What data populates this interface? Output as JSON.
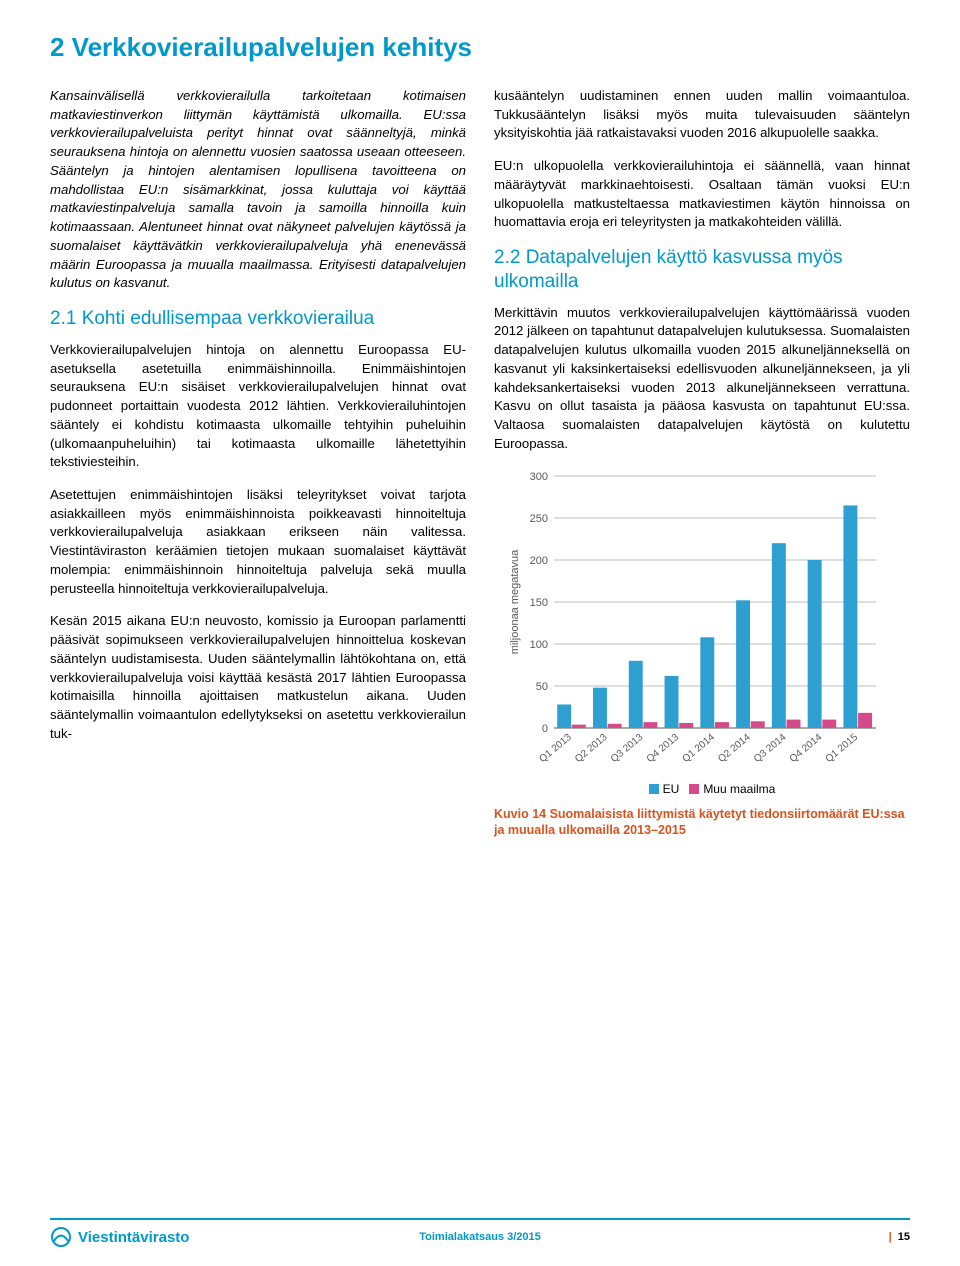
{
  "colors": {
    "title": "#0099cc",
    "body": "#000000",
    "footer_border": "#0099cc",
    "footer_text": "#0099cc",
    "caption": "#d9531e",
    "eu_bar": "#2e9fd1",
    "world_bar": "#d64a8c",
    "grid": "#bfbfbf",
    "axis_text": "#595959"
  },
  "title": "2 Verkkovierailupalvelujen kehitys",
  "intro": "Kansainvälisellä verkkovierailulla tarkoitetaan kotimaisen matkaviestinverkon liittymän käyttämistä ulkomailla. EU:ssa verkkovierailupalveluista perityt hinnat ovat säänneltyjä, minkä seurauksena hintoja on alennettu vuosien saatossa useaan otteeseen. Sääntelyn ja hintojen alentamisen lopullisena tavoitteena on mahdollistaa EU:n sisämarkkinat, jossa kuluttaja voi käyttää matkaviestinpalveluja samalla tavoin ja samoilla hinnoilla kuin kotimaassaan. Alentuneet hinnat ovat näkyneet palvelujen käytössä ja suomalaiset käyttävätkin verkkovierailupalveluja yhä enenevässä määrin Euroopassa ja muualla maailmassa. Erityisesti datapalvelujen kulutus on kasvanut.",
  "sec21_title": "2.1 Kohti edullisempaa verkkovierailua",
  "p21a": "Verkkovierailupalvelujen hintoja on alennettu Euroopassa EU-asetuksella asetetuilla enimmäishinnoilla. Enimmäishintojen seurauksena EU:n sisäiset verkkovierailupalvelujen hinnat ovat pudonneet portaittain vuodesta 2012 lähtien. Verkkovierailuhintojen sääntely ei kohdistu kotimaasta ulkomaille tehtyihin puheluihin (ulkomaanpuheluihin) tai kotimaasta ulkomaille lähetettyihin tekstiviesteihin.",
  "p21b": "Asetettujen enimmäishintojen lisäksi teleyritykset voivat tarjota asiakkailleen myös enimmäishinnoista poikkeavasti hinnoiteltuja verkkovierailupalveluja asiakkaan erikseen näin valitessa. Viestintäviraston keräämien tietojen mukaan suomalaiset käyttävät molempia: enimmäishinnoin hinnoiteltuja palveluja sekä muulla perusteella hinnoiteltuja verkkovierailupalveluja.",
  "p21c": "Kesän 2015 aikana EU:n neuvosto, komissio ja Euroopan parlamentti pääsivät sopimukseen verkkovierailupalvelujen hinnoittelua koskevan sääntelyn uudistamisesta. Uuden sääntelymallin lähtökohtana on, että verkkovierailupalveluja voisi käyttää kesästä 2017 lähtien Euroopassa kotimaisilla hinnoilla ajoittaisen matkustelun aikana. Uuden sääntelymallin voimaantulon edellytykseksi on asetettu verkkovierailun tuk-",
  "p_right_a": "kusääntelyn uudistaminen ennen uuden mallin voimaantuloa. Tukkusääntelyn lisäksi myös muita tulevaisuuden sääntelyn yksityiskohtia jää ratkaistavaksi vuoden 2016 alkupuolelle saakka.",
  "p_right_b": "EU:n ulkopuolella verkkovierailuhintoja ei säännellä, vaan hinnat määräytyvät markkinaehtoisesti. Osaltaan tämän vuoksi EU:n ulkopuolella matkusteltaessa matkaviestimen käytön hinnoissa on huomattavia eroja eri teleyritysten ja matkakohteiden välillä.",
  "sec22_title": "2.2 Datapalvelujen käyttö kasvussa myös ulkomailla",
  "p22a": "Merkittävin muutos verkkovierailupalvelujen käyttömäärissä vuoden 2012 jälkeen on tapahtunut datapalvelujen kulutuksessa. Suomalaisten datapalvelujen kulutus ulkomailla vuoden 2015 alkuneljänneksellä on kasvanut yli kaksinkertaiseksi edellisvuoden alkuneljännekseen, ja yli kahdeksankertaiseksi vuoden 2013 alkuneljännekseen verrattuna. Kasvu on ollut tasaista ja pääosa kasvusta on tapahtunut EU:ssa. Valtaosa suomalaisten datapalvelujen käytöstä on kulutettu Euroopassa.",
  "chart": {
    "type": "bar",
    "y_label": "miljoonaa megatavua",
    "y_max": 300,
    "y_step": 50,
    "categories": [
      "Q1 2013",
      "Q2 2013",
      "Q3 2013",
      "Q4 2013",
      "Q1 2014",
      "Q2 2014",
      "Q3 2014",
      "Q4 2014",
      "Q1 2015"
    ],
    "series": [
      {
        "name": "EU",
        "color_key": "eu_bar",
        "values": [
          28,
          48,
          80,
          62,
          108,
          152,
          220,
          200,
          265
        ]
      },
      {
        "name": "Muu maailma",
        "color_key": "world_bar",
        "values": [
          4,
          5,
          7,
          6,
          7,
          8,
          10,
          10,
          18
        ]
      }
    ]
  },
  "caption": "Kuvio 14 Suomalaisista liittymistä käytetyt tiedonsiirtomäärät EU:ssa ja muualla ulkomailla 2013–2015",
  "footer": {
    "brand": "Viestintävirasto",
    "center": "Toimialakatsaus 3/2015",
    "page": "15"
  }
}
